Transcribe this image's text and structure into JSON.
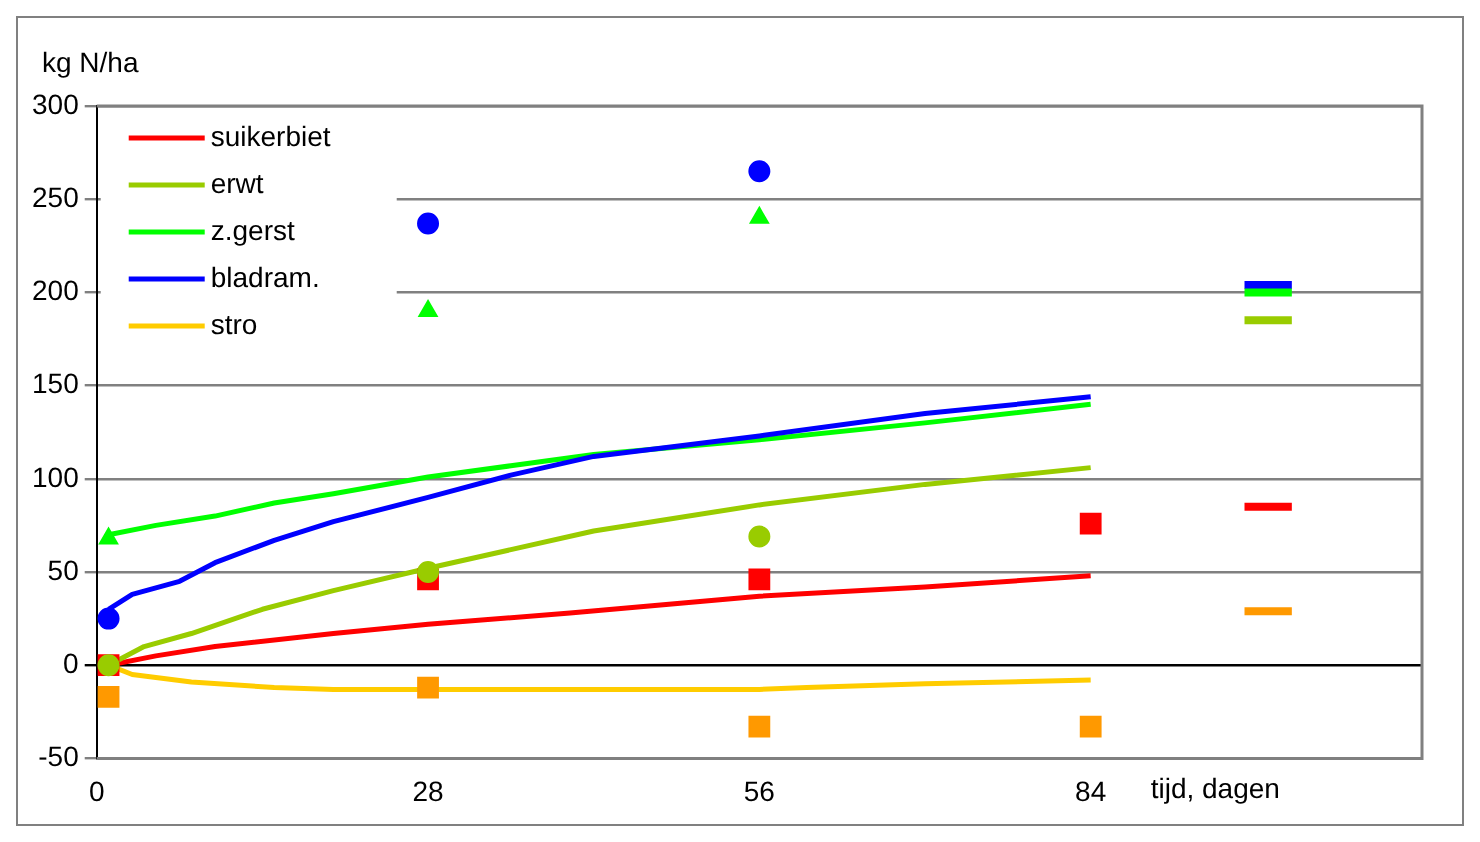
{
  "chart_data": {
    "type": "line",
    "ylabel": "kg N/ha",
    "xlabel": "tijd, dagen",
    "xlim": [
      0,
      112
    ],
    "xticks": [
      0,
      28,
      56,
      84,
      {
        "value": 112,
        "label": null
      }
    ],
    "ylim": [
      -50,
      300
    ],
    "yticks": [
      -50,
      0,
      50,
      100,
      150,
      200,
      250,
      300
    ],
    "grid": "y",
    "legend": "top left",
    "line_style": "solid",
    "series": [
      {
        "name": "suikerbiet",
        "type": "line",
        "color": "#ff0000",
        "x": [
          1,
          5,
          10,
          20,
          28,
          40,
          56,
          70,
          84
        ],
        "values": [
          0,
          5,
          10,
          17,
          22,
          28,
          37,
          42,
          48
        ]
      },
      {
        "name": "erwt",
        "type": "line",
        "color": "#99cc00",
        "x": [
          1,
          4,
          8,
          14,
          20,
          28,
          35,
          42,
          56,
          70,
          84
        ],
        "values": [
          0,
          10,
          17,
          30,
          40,
          52,
          62,
          72,
          86,
          97,
          106
        ]
      },
      {
        "name": "z.gerst",
        "type": "line",
        "color": "#00ff00",
        "x": [
          1,
          5,
          10,
          15,
          20,
          28,
          35,
          42,
          56,
          70,
          84
        ],
        "values": [
          70,
          75,
          80,
          87,
          92,
          101,
          107,
          113,
          121,
          130,
          140
        ]
      },
      {
        "name": "bladram.",
        "type": "line",
        "color": "#0000ff",
        "x": [
          1,
          3,
          7,
          10,
          15,
          20,
          28,
          35,
          42,
          56,
          70,
          84
        ],
        "values": [
          30,
          38,
          45,
          55,
          67,
          77,
          90,
          102,
          112,
          123,
          135,
          144
        ]
      },
      {
        "name": "stro",
        "type": "line",
        "color": "#ffcc00",
        "x": [
          1,
          3,
          8,
          15,
          20,
          28,
          56,
          60,
          70,
          84
        ],
        "values": [
          0,
          -5,
          -9,
          -12,
          -13,
          -13,
          -13,
          -12,
          -10,
          -8
        ]
      },
      {
        "type": "scatter",
        "marker": "square",
        "color": "#ff0000",
        "x": [
          1,
          28,
          56,
          84
        ],
        "values": [
          0,
          46,
          46,
          76
        ]
      },
      {
        "type": "scatter",
        "marker": "circle",
        "color": "#99cc00",
        "x": [
          1,
          28,
          56
        ],
        "values": [
          0,
          50,
          69
        ]
      },
      {
        "type": "scatter",
        "marker": "triangle",
        "color": "#00ff00",
        "x": [
          1,
          28,
          56
        ],
        "values": [
          68,
          190,
          240
        ]
      },
      {
        "type": "scatter",
        "marker": "circle",
        "color": "#0000ff",
        "x": [
          1,
          28,
          56
        ],
        "values": [
          25,
          237,
          265
        ]
      },
      {
        "type": "scatter",
        "marker": "square",
        "color": "#ff9900",
        "x": [
          1,
          28,
          56,
          84
        ],
        "values": [
          -17,
          -12,
          -33,
          -33
        ]
      },
      {
        "type": "line",
        "color": "#0000ff",
        "x": [
          97,
          101
        ],
        "values": [
          204,
          204
        ]
      },
      {
        "type": "line",
        "color": "#00ff00",
        "x": [
          97,
          101
        ],
        "values": [
          200,
          200
        ]
      },
      {
        "type": "line",
        "color": "#99cc00",
        "x": [
          97,
          101
        ],
        "values": [
          185,
          185
        ]
      },
      {
        "type": "line",
        "color": "#ff0000",
        "x": [
          97,
          101
        ],
        "values": [
          85,
          85
        ]
      },
      {
        "type": "line",
        "color": "#ff9900",
        "x": [
          97,
          101
        ],
        "values": [
          29,
          29
        ]
      }
    ]
  }
}
